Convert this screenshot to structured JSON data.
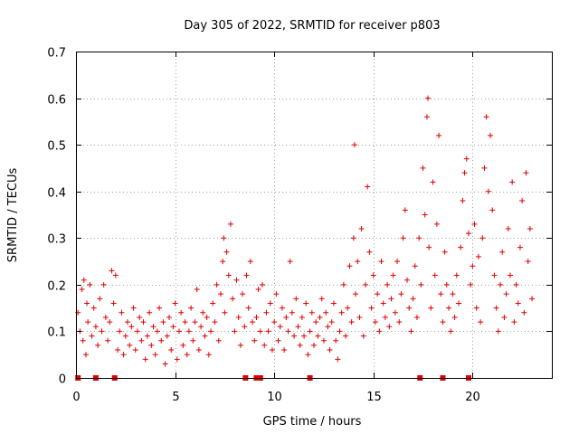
{
  "chart_data": {
    "type": "scatter",
    "title": "Day 305 of 2022, SRMTID for receiver p803",
    "xlabel": "GPS time / hours",
    "ylabel": "SRMTID / TECUs",
    "xlim": [
      0,
      24
    ],
    "ylim": [
      0,
      0.7
    ],
    "x_ticks": [
      0,
      5,
      10,
      15,
      20
    ],
    "x_tick_labels": [
      "0",
      "5",
      "10",
      "15",
      "20"
    ],
    "y_ticks": [
      0,
      0.1,
      0.2,
      0.3,
      0.4,
      0.5,
      0.6,
      0.7
    ],
    "y_tick_labels": [
      "0",
      "0.1",
      "0.2",
      "0.3",
      "0.4",
      "0.5",
      "0.6",
      "0.7"
    ],
    "grid": true,
    "marker": "plus",
    "color": "#e00000",
    "series": [
      {
        "name": "SRMTID",
        "note": "representative sample of the dense point cloud",
        "points": [
          [
            0.1,
            0.14
          ],
          [
            0.2,
            0.1
          ],
          [
            0.3,
            0.19
          ],
          [
            0.35,
            0.08
          ],
          [
            0.4,
            0.21
          ],
          [
            0.5,
            0.05
          ],
          [
            0.55,
            0.16
          ],
          [
            0.6,
            0.12
          ],
          [
            0.7,
            0.2
          ],
          [
            0.8,
            0.09
          ],
          [
            0.9,
            0.15
          ],
          [
            1.0,
            0.11
          ],
          [
            1.1,
            0.07
          ],
          [
            1.2,
            0.17
          ],
          [
            1.3,
            0.1
          ],
          [
            1.4,
            0.2
          ],
          [
            1.5,
            0.13
          ],
          [
            1.6,
            0.08
          ],
          [
            1.7,
            0.12
          ],
          [
            1.8,
            0.23
          ],
          [
            1.9,
            0.16
          ],
          [
            2.0,
            0.22
          ],
          [
            2.1,
            0.06
          ],
          [
            2.2,
            0.1
          ],
          [
            2.3,
            0.14
          ],
          [
            2.4,
            0.05
          ],
          [
            2.5,
            0.09
          ],
          [
            2.6,
            0.12
          ],
          [
            2.7,
            0.07
          ],
          [
            2.8,
            0.11
          ],
          [
            2.9,
            0.15
          ],
          [
            3.0,
            0.06
          ],
          [
            3.1,
            0.1
          ],
          [
            3.2,
            0.13
          ],
          [
            3.3,
            0.08
          ],
          [
            3.4,
            0.12
          ],
          [
            3.5,
            0.04
          ],
          [
            3.6,
            0.09
          ],
          [
            3.7,
            0.14
          ],
          [
            3.8,
            0.07
          ],
          [
            3.9,
            0.11
          ],
          [
            4.0,
            0.05
          ],
          [
            4.1,
            0.1
          ],
          [
            4.2,
            0.15
          ],
          [
            4.3,
            0.08
          ],
          [
            4.4,
            0.12
          ],
          [
            4.5,
            0.03
          ],
          [
            4.6,
            0.09
          ],
          [
            4.7,
            0.13
          ],
          [
            4.8,
            0.06
          ],
          [
            4.9,
            0.11
          ],
          [
            5.0,
            0.16
          ],
          [
            5.1,
            0.04
          ],
          [
            5.2,
            0.1
          ],
          [
            5.3,
            0.14
          ],
          [
            5.4,
            0.07
          ],
          [
            5.5,
            0.12
          ],
          [
            5.6,
            0.05
          ],
          [
            5.7,
            0.1
          ],
          [
            5.8,
            0.15
          ],
          [
            5.9,
            0.08
          ],
          [
            6.0,
            0.12
          ],
          [
            6.1,
            0.19
          ],
          [
            6.2,
            0.06
          ],
          [
            6.3,
            0.11
          ],
          [
            6.4,
            0.14
          ],
          [
            6.5,
            0.09
          ],
          [
            6.6,
            0.13
          ],
          [
            6.7,
            0.05
          ],
          [
            6.8,
            0.1
          ],
          [
            6.9,
            0.16
          ],
          [
            7.0,
            0.12
          ],
          [
            7.1,
            0.2
          ],
          [
            7.2,
            0.08
          ],
          [
            7.3,
            0.18
          ],
          [
            7.4,
            0.25
          ],
          [
            7.45,
            0.3
          ],
          [
            7.5,
            0.14
          ],
          [
            7.6,
            0.27
          ],
          [
            7.7,
            0.22
          ],
          [
            7.8,
            0.33
          ],
          [
            7.9,
            0.17
          ],
          [
            8.0,
            0.1
          ],
          [
            8.1,
            0.21
          ],
          [
            8.2,
            0.13
          ],
          [
            8.3,
            0.07
          ],
          [
            8.4,
            0.18
          ],
          [
            8.5,
            0.11
          ],
          [
            8.6,
            0.22
          ],
          [
            8.7,
            0.15
          ],
          [
            8.8,
            0.25
          ],
          [
            8.9,
            0.12
          ],
          [
            9.0,
            0.08
          ],
          [
            9.1,
            0.13
          ],
          [
            9.2,
            0.19
          ],
          [
            9.3,
            0.1
          ],
          [
            9.4,
            0.2
          ],
          [
            9.5,
            0.07
          ],
          [
            9.6,
            0.14
          ],
          [
            9.7,
            0.1
          ],
          [
            9.8,
            0.16
          ],
          [
            9.9,
            0.06
          ],
          [
            10.0,
            0.12
          ],
          [
            10.1,
            0.18
          ],
          [
            10.2,
            0.08
          ],
          [
            10.3,
            0.11
          ],
          [
            10.4,
            0.15
          ],
          [
            10.5,
            0.06
          ],
          [
            10.6,
            0.13
          ],
          [
            10.7,
            0.1
          ],
          [
            10.8,
            0.25
          ],
          [
            10.9,
            0.14
          ],
          [
            11.0,
            0.09
          ],
          [
            11.1,
            0.17
          ],
          [
            11.2,
            0.11
          ],
          [
            11.3,
            0.07
          ],
          [
            11.4,
            0.13
          ],
          [
            11.5,
            0.09
          ],
          [
            11.6,
            0.16
          ],
          [
            11.7,
            0.05
          ],
          [
            11.8,
            0.1
          ],
          [
            11.9,
            0.14
          ],
          [
            12.0,
            0.07
          ],
          [
            12.1,
            0.12
          ],
          [
            12.2,
            0.09
          ],
          [
            12.3,
            0.13
          ],
          [
            12.4,
            0.17
          ],
          [
            12.5,
            0.08
          ],
          [
            12.6,
            0.14
          ],
          [
            12.7,
            0.11
          ],
          [
            12.8,
            0.06
          ],
          [
            12.9,
            0.12
          ],
          [
            13.0,
            0.16
          ],
          [
            13.1,
            0.08
          ],
          [
            13.2,
            0.04
          ],
          [
            13.3,
            0.1
          ],
          [
            13.4,
            0.14
          ],
          [
            13.5,
            0.2
          ],
          [
            13.6,
            0.09
          ],
          [
            13.7,
            0.15
          ],
          [
            13.8,
            0.24
          ],
          [
            13.9,
            0.12
          ],
          [
            14.0,
            0.3
          ],
          [
            14.05,
            0.5
          ],
          [
            14.1,
            0.18
          ],
          [
            14.2,
            0.25
          ],
          [
            14.3,
            0.13
          ],
          [
            14.4,
            0.32
          ],
          [
            14.5,
            0.09
          ],
          [
            14.6,
            0.2
          ],
          [
            14.7,
            0.41
          ],
          [
            14.8,
            0.27
          ],
          [
            14.9,
            0.15
          ],
          [
            15.0,
            0.22
          ],
          [
            15.1,
            0.12
          ],
          [
            15.2,
            0.18
          ],
          [
            15.3,
            0.1
          ],
          [
            15.4,
            0.25
          ],
          [
            15.5,
            0.16
          ],
          [
            15.6,
            0.13
          ],
          [
            15.7,
            0.2
          ],
          [
            15.8,
            0.11
          ],
          [
            15.9,
            0.17
          ],
          [
            16.0,
            0.22
          ],
          [
            16.1,
            0.14
          ],
          [
            16.2,
            0.25
          ],
          [
            16.3,
            0.12
          ],
          [
            16.4,
            0.18
          ],
          [
            16.5,
            0.3
          ],
          [
            16.6,
            0.36
          ],
          [
            16.7,
            0.21
          ],
          [
            16.8,
            0.15
          ],
          [
            16.9,
            0.1
          ],
          [
            17.0,
            0.17
          ],
          [
            17.1,
            0.24
          ],
          [
            17.2,
            0.13
          ],
          [
            17.3,
            0.3
          ],
          [
            17.4,
            0.2
          ],
          [
            17.5,
            0.45
          ],
          [
            17.6,
            0.35
          ],
          [
            17.7,
            0.56
          ],
          [
            17.75,
            0.6
          ],
          [
            17.8,
            0.28
          ],
          [
            17.9,
            0.15
          ],
          [
            18.0,
            0.42
          ],
          [
            18.1,
            0.22
          ],
          [
            18.2,
            0.33
          ],
          [
            18.3,
            0.52
          ],
          [
            18.4,
            0.18
          ],
          [
            18.5,
            0.12
          ],
          [
            18.6,
            0.27
          ],
          [
            18.7,
            0.2
          ],
          [
            18.8,
            0.15
          ],
          [
            18.9,
            0.1
          ],
          [
            19.0,
            0.18
          ],
          [
            19.1,
            0.13
          ],
          [
            19.2,
            0.22
          ],
          [
            19.3,
            0.16
          ],
          [
            19.4,
            0.28
          ],
          [
            19.5,
            0.38
          ],
          [
            19.6,
            0.44
          ],
          [
            19.7,
            0.47
          ],
          [
            19.8,
            0.31
          ],
          [
            19.9,
            0.2
          ],
          [
            20.0,
            0.24
          ],
          [
            20.1,
            0.33
          ],
          [
            20.2,
            0.15
          ],
          [
            20.3,
            0.26
          ],
          [
            20.4,
            0.12
          ],
          [
            20.5,
            0.3
          ],
          [
            20.6,
            0.45
          ],
          [
            20.7,
            0.56
          ],
          [
            20.8,
            0.4
          ],
          [
            20.9,
            0.52
          ],
          [
            21.0,
            0.36
          ],
          [
            21.1,
            0.22
          ],
          [
            21.2,
            0.15
          ],
          [
            21.3,
            0.1
          ],
          [
            21.4,
            0.2
          ],
          [
            21.5,
            0.27
          ],
          [
            21.6,
            0.13
          ],
          [
            21.7,
            0.18
          ],
          [
            21.8,
            0.32
          ],
          [
            21.9,
            0.22
          ],
          [
            22.0,
            0.42
          ],
          [
            22.1,
            0.12
          ],
          [
            22.2,
            0.2
          ],
          [
            22.3,
            0.16
          ],
          [
            22.4,
            0.28
          ],
          [
            22.5,
            0.38
          ],
          [
            22.6,
            0.14
          ],
          [
            22.7,
            0.44
          ],
          [
            22.8,
            0.25
          ],
          [
            22.9,
            0.32
          ],
          [
            23.0,
            0.17
          ]
        ]
      }
    ],
    "gap_markers_x": [
      0.1,
      1.0,
      1.95,
      8.55,
      9.1,
      9.3,
      11.8,
      17.35,
      18.5,
      19.8
    ]
  }
}
